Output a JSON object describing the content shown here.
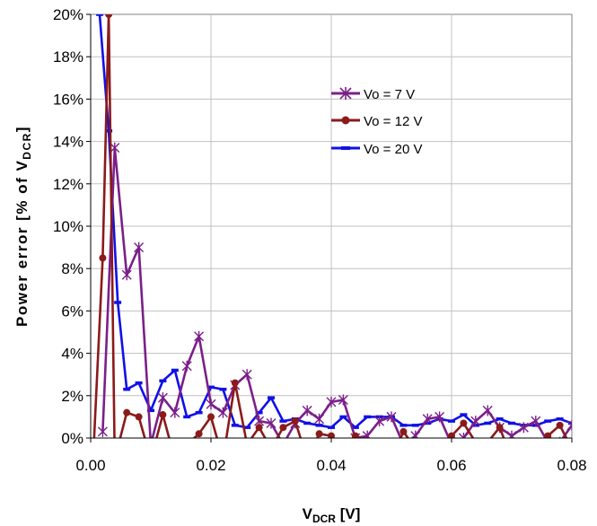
{
  "chart_data": {
    "type": "line",
    "title": "",
    "xlabel": "V",
    "xlabel_sub": "DCR",
    "xlabel_tail": " [V]",
    "ylabel": "Power error [% of V",
    "ylabel_sub": "DCR",
    "ylabel_tail": "]",
    "xlim": [
      0,
      0.08
    ],
    "ylim": [
      0,
      20
    ],
    "x_ticks": [
      "0.00",
      "0.02",
      "0.04",
      "0.06",
      "0.08"
    ],
    "y_ticks": [
      "0%",
      "2%",
      "4%",
      "6%",
      "8%",
      "10%",
      "12%",
      "14%",
      "16%",
      "18%",
      "20%"
    ],
    "grid": true,
    "legend_position": "upper-right",
    "series": [
      {
        "name": "Vo = 7 V",
        "color": "#7b1f8a",
        "marker": "star",
        "x": [
          0.002,
          0.004,
          0.006,
          0.008,
          0.01,
          0.012,
          0.014,
          0.016,
          0.018,
          0.02,
          0.022,
          0.024,
          0.026,
          0.028,
          0.03,
          0.032,
          0.034,
          0.036,
          0.038,
          0.04,
          0.042,
          0.044,
          0.046,
          0.048,
          0.05,
          0.052,
          0.054,
          0.056,
          0.058,
          0.06,
          0.062,
          0.064,
          0.066,
          0.068,
          0.07,
          0.072,
          0.074,
          0.076,
          0.078,
          0.08
        ],
        "y": [
          0.3,
          13.7,
          7.7,
          9.0,
          -0.3,
          1.9,
          1.2,
          3.4,
          4.8,
          1.6,
          1.2,
          2.5,
          3.0,
          0.8,
          0.7,
          -0.3,
          0.7,
          1.3,
          0.9,
          1.7,
          1.8,
          0.0,
          0.1,
          0.8,
          1.0,
          -0.3,
          0.1,
          0.9,
          1.0,
          -0.3,
          0.0,
          0.8,
          1.3,
          0.5,
          0.1,
          0.5,
          0.8,
          -0.2,
          -0.2,
          0.6
        ]
      },
      {
        "name": "Vo = 12 V",
        "color": "#8b1a1a",
        "marker": "circle",
        "x": [
          0.0005,
          0.002,
          0.003,
          0.004,
          0.006,
          0.008,
          0.01,
          0.012,
          0.014,
          0.016,
          0.018,
          0.02,
          0.022,
          0.024,
          0.026,
          0.028,
          0.03,
          0.032,
          0.034,
          0.036,
          0.038,
          0.04,
          0.042,
          0.044,
          0.046,
          0.048,
          0.05,
          0.052,
          0.054,
          0.056,
          0.058,
          0.06,
          0.062,
          0.064,
          0.066,
          0.068,
          0.07,
          0.072,
          0.074,
          0.076,
          0.078,
          0.08
        ],
        "y": [
          -0.5,
          8.5,
          20.0,
          -1.0,
          1.2,
          1.0,
          -1.0,
          1.1,
          -1.0,
          -0.3,
          0.2,
          1.0,
          -1.0,
          2.6,
          -0.3,
          0.5,
          -0.5,
          0.5,
          0.8,
          -1.0,
          0.2,
          0.1,
          -1.0,
          0.1,
          -0.5,
          -0.8,
          -1.0,
          0.3,
          -0.5,
          -0.3,
          -0.5,
          0.1,
          0.7,
          -0.2,
          -0.2,
          0.5,
          -1.0,
          -0.5,
          -0.3,
          0.1,
          0.6,
          -0.5
        ]
      },
      {
        "name": "Vo = 20 V",
        "color": "#1010e8",
        "marker": "dash",
        "x": [
          0.0015,
          0.003,
          0.0045,
          0.006,
          0.008,
          0.01,
          0.012,
          0.014,
          0.016,
          0.018,
          0.02,
          0.022,
          0.024,
          0.026,
          0.028,
          0.03,
          0.032,
          0.034,
          0.036,
          0.038,
          0.04,
          0.042,
          0.044,
          0.046,
          0.048,
          0.05,
          0.052,
          0.054,
          0.056,
          0.058,
          0.06,
          0.062,
          0.064,
          0.066,
          0.068,
          0.07,
          0.072,
          0.074,
          0.076,
          0.078,
          0.08
        ],
        "y": [
          20.0,
          14.5,
          6.4,
          2.3,
          2.6,
          1.3,
          2.7,
          3.2,
          1.0,
          1.2,
          2.4,
          2.3,
          0.6,
          0.5,
          1.2,
          1.9,
          0.8,
          0.9,
          0.7,
          0.6,
          0.5,
          1.0,
          0.5,
          1.0,
          1.0,
          1.0,
          0.6,
          0.6,
          0.7,
          0.9,
          0.8,
          1.1,
          0.6,
          0.7,
          0.9,
          0.7,
          0.6,
          0.6,
          0.8,
          0.9,
          0.7
        ]
      }
    ]
  }
}
